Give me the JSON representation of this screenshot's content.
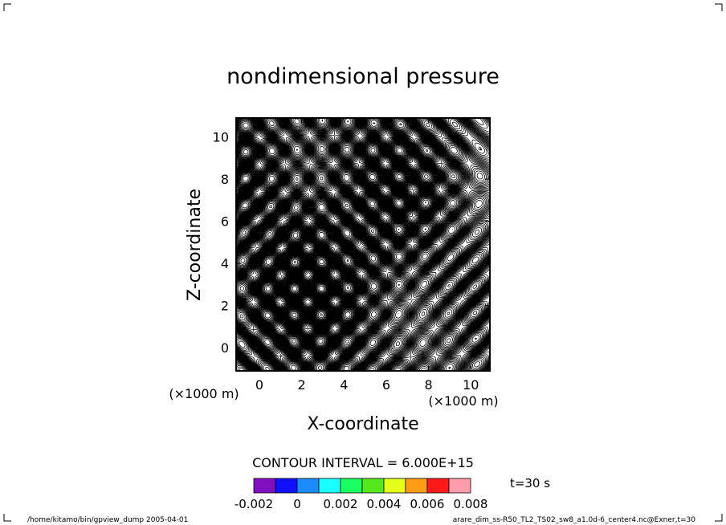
{
  "chart_data": {
    "type": "contour",
    "title": "nondimensional pressure",
    "xlabel": "X-coordinate",
    "ylabel": "Z-coordinate",
    "x_ticks": [
      "0",
      "2",
      "4",
      "6",
      "8",
      "10"
    ],
    "y_ticks": [
      "0",
      "2",
      "4",
      "6",
      "8",
      "10"
    ],
    "x_units": "(×1000 m)",
    "y_units": "(×1000 m)",
    "xlim": [
      -1.1,
      10.9
    ],
    "ylim": [
      -1.1,
      10.9
    ],
    "contour_interval": "CONTOUR INTERVAL = 6.000E+15",
    "time_label": "t=30 s",
    "colorbar": {
      "labels": [
        "-0.002",
        "0",
        "0.002",
        "0.004",
        "0.006",
        "0.008"
      ],
      "colors": [
        "#7f0fbf",
        "#1010ff",
        "#1a8cff",
        "#19ffff",
        "#18ff60",
        "#55e81c",
        "#e6ff1a",
        "#ff9c16",
        "#ff1a1a",
        "#ff9cab"
      ]
    },
    "footer_left": "/home/kitamo/bin/gpview_dump  2005-04-01",
    "footer_right": "arare_dim_ss-R50_TL2_TS02_sw8_a1.0d-6_center4.nc@Exner,t=30"
  }
}
